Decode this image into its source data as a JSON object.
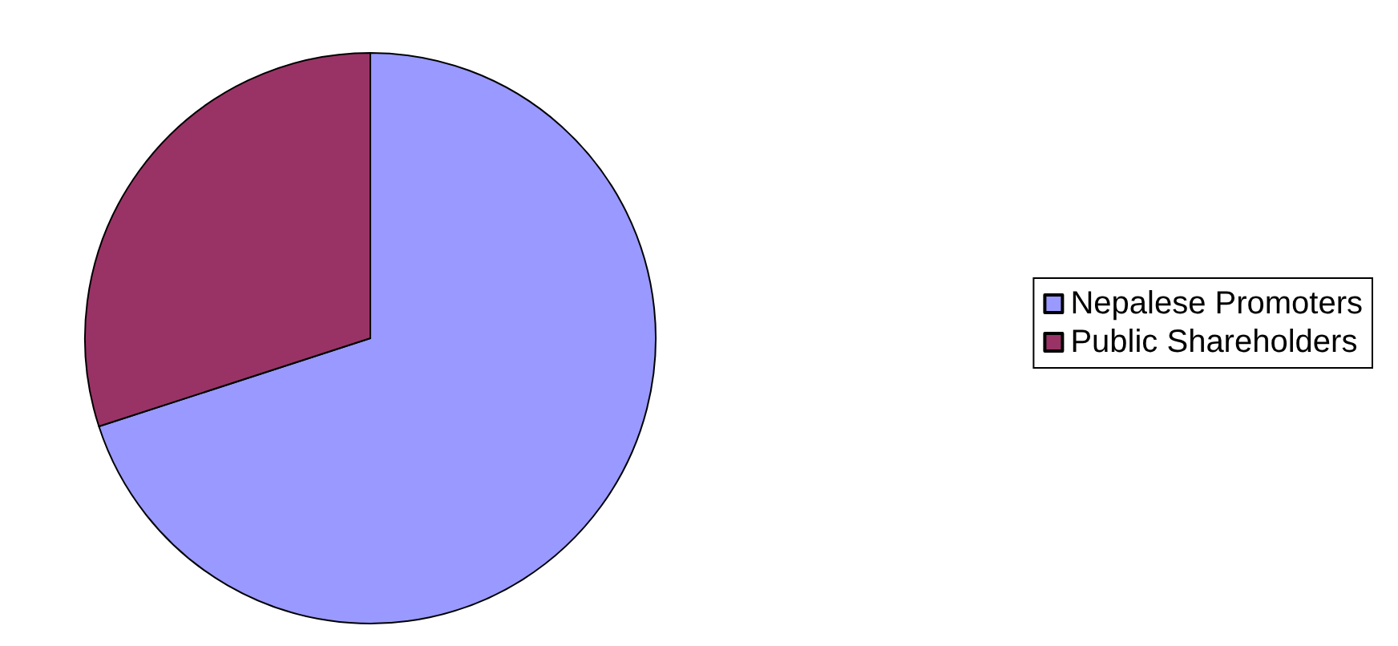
{
  "chart_data": {
    "type": "pie",
    "categories": [
      "Nepalese Promoters",
      "Public Shareholders"
    ],
    "values": [
      70,
      30
    ],
    "colors": [
      "#9999ff",
      "#993366"
    ],
    "legend": "right"
  }
}
